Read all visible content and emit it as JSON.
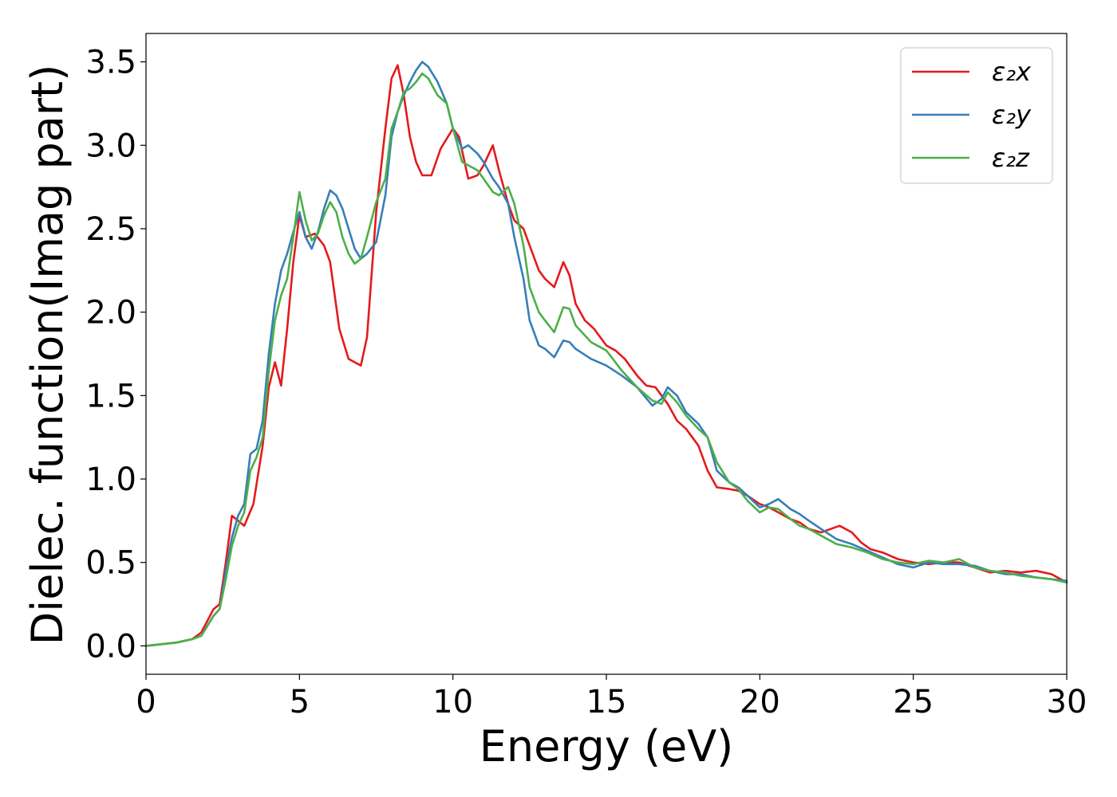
{
  "chart_data": {
    "type": "line",
    "title": "",
    "xlabel": "Energy (eV)",
    "ylabel": "Dielec. function(Imag part)",
    "xlim": [
      0,
      30
    ],
    "ylim": [
      -0.17,
      3.67
    ],
    "xticks": [
      "0",
      "5",
      "10",
      "15",
      "20",
      "25",
      "30"
    ],
    "yticks": [
      "0.0",
      "0.5",
      "1.0",
      "1.5",
      "2.0",
      "2.5",
      "3.0",
      "3.5"
    ],
    "grid": false,
    "legend_position": "top-right",
    "series": [
      {
        "name": "ε₂x",
        "color": "#e41a1c",
        "points": [
          [
            0,
            0
          ],
          [
            0.5,
            0.01
          ],
          [
            1.0,
            0.02
          ],
          [
            1.5,
            0.04
          ],
          [
            1.8,
            0.08
          ],
          [
            2.0,
            0.15
          ],
          [
            2.2,
            0.22
          ],
          [
            2.4,
            0.25
          ],
          [
            2.6,
            0.5
          ],
          [
            2.8,
            0.78
          ],
          [
            3.0,
            0.75
          ],
          [
            3.2,
            0.72
          ],
          [
            3.5,
            0.85
          ],
          [
            3.8,
            1.2
          ],
          [
            4.0,
            1.55
          ],
          [
            4.2,
            1.7
          ],
          [
            4.4,
            1.56
          ],
          [
            4.6,
            1.9
          ],
          [
            4.8,
            2.3
          ],
          [
            5.0,
            2.58
          ],
          [
            5.2,
            2.45
          ],
          [
            5.5,
            2.47
          ],
          [
            5.8,
            2.4
          ],
          [
            6.0,
            2.3
          ],
          [
            6.3,
            1.9
          ],
          [
            6.6,
            1.72
          ],
          [
            6.8,
            1.7
          ],
          [
            7.0,
            1.68
          ],
          [
            7.2,
            1.85
          ],
          [
            7.5,
            2.6
          ],
          [
            7.8,
            3.1
          ],
          [
            8.0,
            3.4
          ],
          [
            8.2,
            3.48
          ],
          [
            8.4,
            3.3
          ],
          [
            8.6,
            3.05
          ],
          [
            8.8,
            2.9
          ],
          [
            9.0,
            2.82
          ],
          [
            9.3,
            2.82
          ],
          [
            9.6,
            2.98
          ],
          [
            10.0,
            3.1
          ],
          [
            10.2,
            3.05
          ],
          [
            10.5,
            2.8
          ],
          [
            10.8,
            2.82
          ],
          [
            11.0,
            2.88
          ],
          [
            11.3,
            3.0
          ],
          [
            11.5,
            2.85
          ],
          [
            11.8,
            2.65
          ],
          [
            12.0,
            2.55
          ],
          [
            12.3,
            2.5
          ],
          [
            12.5,
            2.4
          ],
          [
            12.8,
            2.25
          ],
          [
            13.0,
            2.2
          ],
          [
            13.3,
            2.15
          ],
          [
            13.6,
            2.3
          ],
          [
            13.8,
            2.22
          ],
          [
            14.0,
            2.05
          ],
          [
            14.3,
            1.95
          ],
          [
            14.6,
            1.9
          ],
          [
            15.0,
            1.8
          ],
          [
            15.3,
            1.77
          ],
          [
            15.6,
            1.72
          ],
          [
            16.0,
            1.62
          ],
          [
            16.3,
            1.56
          ],
          [
            16.6,
            1.55
          ],
          [
            17.0,
            1.45
          ],
          [
            17.3,
            1.35
          ],
          [
            17.6,
            1.3
          ],
          [
            18.0,
            1.2
          ],
          [
            18.3,
            1.05
          ],
          [
            18.6,
            0.95
          ],
          [
            19.0,
            0.94
          ],
          [
            19.3,
            0.93
          ],
          [
            19.6,
            0.9
          ],
          [
            20.0,
            0.85
          ],
          [
            20.3,
            0.83
          ],
          [
            20.6,
            0.8
          ],
          [
            21.0,
            0.76
          ],
          [
            21.3,
            0.74
          ],
          [
            21.6,
            0.7
          ],
          [
            22.0,
            0.68
          ],
          [
            22.3,
            0.7
          ],
          [
            22.6,
            0.72
          ],
          [
            23.0,
            0.68
          ],
          [
            23.3,
            0.62
          ],
          [
            23.6,
            0.58
          ],
          [
            24.0,
            0.56
          ],
          [
            24.5,
            0.52
          ],
          [
            25.0,
            0.5
          ],
          [
            25.5,
            0.49
          ],
          [
            26.0,
            0.5
          ],
          [
            26.5,
            0.5
          ],
          [
            27.0,
            0.47
          ],
          [
            27.5,
            0.44
          ],
          [
            28.0,
            0.45
          ],
          [
            28.5,
            0.44
          ],
          [
            29.0,
            0.45
          ],
          [
            29.5,
            0.43
          ],
          [
            30.0,
            0.38
          ]
        ]
      },
      {
        "name": "ε₂y",
        "color": "#377eb8",
        "points": [
          [
            0,
            0
          ],
          [
            0.5,
            0.01
          ],
          [
            1.0,
            0.02
          ],
          [
            1.5,
            0.04
          ],
          [
            1.8,
            0.06
          ],
          [
            2.0,
            0.12
          ],
          [
            2.2,
            0.18
          ],
          [
            2.4,
            0.22
          ],
          [
            2.6,
            0.45
          ],
          [
            2.8,
            0.65
          ],
          [
            3.0,
            0.78
          ],
          [
            3.2,
            0.85
          ],
          [
            3.4,
            1.15
          ],
          [
            3.6,
            1.18
          ],
          [
            3.8,
            1.35
          ],
          [
            4.0,
            1.75
          ],
          [
            4.2,
            2.05
          ],
          [
            4.4,
            2.25
          ],
          [
            4.6,
            2.35
          ],
          [
            4.8,
            2.48
          ],
          [
            5.0,
            2.6
          ],
          [
            5.2,
            2.45
          ],
          [
            5.4,
            2.38
          ],
          [
            5.6,
            2.48
          ],
          [
            5.8,
            2.62
          ],
          [
            6.0,
            2.73
          ],
          [
            6.2,
            2.7
          ],
          [
            6.4,
            2.62
          ],
          [
            6.6,
            2.5
          ],
          [
            6.8,
            2.38
          ],
          [
            7.0,
            2.32
          ],
          [
            7.2,
            2.35
          ],
          [
            7.5,
            2.42
          ],
          [
            7.8,
            2.7
          ],
          [
            8.0,
            3.05
          ],
          [
            8.2,
            3.2
          ],
          [
            8.4,
            3.3
          ],
          [
            8.6,
            3.38
          ],
          [
            8.8,
            3.45
          ],
          [
            9.0,
            3.5
          ],
          [
            9.2,
            3.47
          ],
          [
            9.5,
            3.38
          ],
          [
            9.8,
            3.25
          ],
          [
            10.0,
            3.1
          ],
          [
            10.3,
            2.98
          ],
          [
            10.5,
            3.0
          ],
          [
            10.8,
            2.95
          ],
          [
            11.0,
            2.9
          ],
          [
            11.3,
            2.8
          ],
          [
            11.5,
            2.75
          ],
          [
            11.8,
            2.65
          ],
          [
            12.0,
            2.45
          ],
          [
            12.3,
            2.2
          ],
          [
            12.5,
            1.95
          ],
          [
            12.8,
            1.8
          ],
          [
            13.0,
            1.78
          ],
          [
            13.3,
            1.73
          ],
          [
            13.6,
            1.83
          ],
          [
            13.8,
            1.82
          ],
          [
            14.0,
            1.78
          ],
          [
            14.5,
            1.72
          ],
          [
            15.0,
            1.68
          ],
          [
            15.5,
            1.62
          ],
          [
            16.0,
            1.55
          ],
          [
            16.5,
            1.44
          ],
          [
            16.8,
            1.48
          ],
          [
            17.0,
            1.55
          ],
          [
            17.3,
            1.5
          ],
          [
            17.6,
            1.4
          ],
          [
            18.0,
            1.33
          ],
          [
            18.3,
            1.25
          ],
          [
            18.6,
            1.05
          ],
          [
            19.0,
            0.98
          ],
          [
            19.3,
            0.95
          ],
          [
            19.6,
            0.9
          ],
          [
            20.0,
            0.83
          ],
          [
            20.3,
            0.85
          ],
          [
            20.6,
            0.88
          ],
          [
            21.0,
            0.82
          ],
          [
            21.3,
            0.79
          ],
          [
            21.6,
            0.75
          ],
          [
            22.0,
            0.7
          ],
          [
            22.5,
            0.64
          ],
          [
            23.0,
            0.61
          ],
          [
            23.5,
            0.57
          ],
          [
            24.0,
            0.53
          ],
          [
            24.5,
            0.49
          ],
          [
            25.0,
            0.47
          ],
          [
            25.5,
            0.5
          ],
          [
            26.0,
            0.49
          ],
          [
            26.5,
            0.49
          ],
          [
            27.0,
            0.48
          ],
          [
            27.5,
            0.45
          ],
          [
            28.0,
            0.43
          ],
          [
            28.5,
            0.43
          ],
          [
            29.0,
            0.41
          ],
          [
            29.5,
            0.4
          ],
          [
            30.0,
            0.39
          ]
        ]
      },
      {
        "name": "ε₂z",
        "color": "#4daf4a",
        "points": [
          [
            0,
            0
          ],
          [
            0.5,
            0.01
          ],
          [
            1.0,
            0.02
          ],
          [
            1.5,
            0.04
          ],
          [
            1.8,
            0.06
          ],
          [
            2.0,
            0.12
          ],
          [
            2.2,
            0.18
          ],
          [
            2.4,
            0.22
          ],
          [
            2.6,
            0.4
          ],
          [
            2.8,
            0.6
          ],
          [
            3.0,
            0.72
          ],
          [
            3.2,
            0.8
          ],
          [
            3.4,
            1.05
          ],
          [
            3.6,
            1.13
          ],
          [
            3.8,
            1.25
          ],
          [
            4.0,
            1.65
          ],
          [
            4.2,
            1.95
          ],
          [
            4.4,
            2.1
          ],
          [
            4.6,
            2.2
          ],
          [
            4.8,
            2.45
          ],
          [
            5.0,
            2.72
          ],
          [
            5.2,
            2.55
          ],
          [
            5.4,
            2.43
          ],
          [
            5.6,
            2.47
          ],
          [
            5.8,
            2.58
          ],
          [
            6.0,
            2.66
          ],
          [
            6.2,
            2.6
          ],
          [
            6.4,
            2.45
          ],
          [
            6.6,
            2.35
          ],
          [
            6.8,
            2.29
          ],
          [
            7.0,
            2.32
          ],
          [
            7.2,
            2.45
          ],
          [
            7.5,
            2.66
          ],
          [
            7.8,
            2.8
          ],
          [
            8.0,
            3.1
          ],
          [
            8.2,
            3.2
          ],
          [
            8.4,
            3.32
          ],
          [
            8.6,
            3.34
          ],
          [
            8.8,
            3.38
          ],
          [
            9.0,
            3.43
          ],
          [
            9.2,
            3.4
          ],
          [
            9.5,
            3.3
          ],
          [
            9.8,
            3.25
          ],
          [
            10.0,
            3.1
          ],
          [
            10.3,
            2.9
          ],
          [
            10.5,
            2.88
          ],
          [
            10.8,
            2.85
          ],
          [
            11.0,
            2.8
          ],
          [
            11.3,
            2.72
          ],
          [
            11.5,
            2.7
          ],
          [
            11.8,
            2.75
          ],
          [
            12.0,
            2.65
          ],
          [
            12.3,
            2.4
          ],
          [
            12.5,
            2.15
          ],
          [
            12.8,
            2.0
          ],
          [
            13.0,
            1.95
          ],
          [
            13.3,
            1.88
          ],
          [
            13.6,
            2.03
          ],
          [
            13.8,
            2.02
          ],
          [
            14.0,
            1.92
          ],
          [
            14.5,
            1.82
          ],
          [
            15.0,
            1.77
          ],
          [
            15.5,
            1.65
          ],
          [
            16.0,
            1.55
          ],
          [
            16.5,
            1.47
          ],
          [
            16.8,
            1.45
          ],
          [
            17.0,
            1.52
          ],
          [
            17.3,
            1.46
          ],
          [
            17.6,
            1.38
          ],
          [
            18.0,
            1.3
          ],
          [
            18.3,
            1.25
          ],
          [
            18.6,
            1.1
          ],
          [
            19.0,
            0.98
          ],
          [
            19.3,
            0.94
          ],
          [
            19.6,
            0.87
          ],
          [
            20.0,
            0.8
          ],
          [
            20.3,
            0.83
          ],
          [
            20.6,
            0.82
          ],
          [
            21.0,
            0.76
          ],
          [
            21.3,
            0.72
          ],
          [
            21.6,
            0.7
          ],
          [
            22.0,
            0.66
          ],
          [
            22.5,
            0.61
          ],
          [
            23.0,
            0.59
          ],
          [
            23.5,
            0.56
          ],
          [
            24.0,
            0.52
          ],
          [
            24.5,
            0.5
          ],
          [
            25.0,
            0.49
          ],
          [
            25.5,
            0.51
          ],
          [
            26.0,
            0.5
          ],
          [
            26.5,
            0.52
          ],
          [
            27.0,
            0.47
          ],
          [
            27.5,
            0.45
          ],
          [
            28.0,
            0.44
          ],
          [
            28.5,
            0.42
          ],
          [
            29.0,
            0.41
          ],
          [
            29.5,
            0.4
          ],
          [
            30.0,
            0.38
          ]
        ]
      }
    ]
  }
}
